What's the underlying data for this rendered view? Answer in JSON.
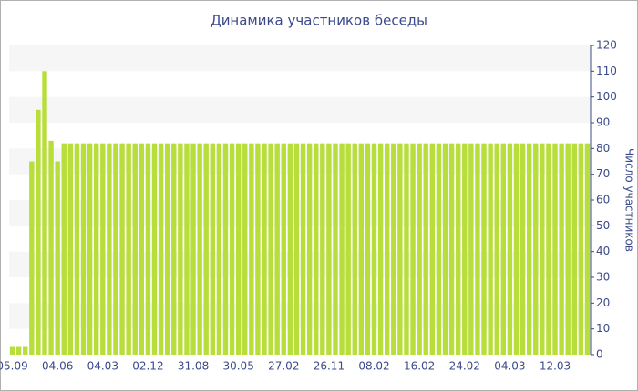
{
  "chart_data": {
    "type": "bar",
    "title": "Динамика участников беседы",
    "y_axis_label": "Число участников",
    "categories": [
      "05.09",
      null,
      null,
      null,
      null,
      null,
      null,
      "04.06",
      null,
      null,
      null,
      null,
      null,
      null,
      "04.03",
      null,
      null,
      null,
      null,
      null,
      null,
      "02.12",
      null,
      null,
      null,
      null,
      null,
      null,
      "31.08",
      null,
      null,
      null,
      null,
      null,
      null,
      "30.05",
      null,
      null,
      null,
      null,
      null,
      null,
      "27.02",
      null,
      null,
      null,
      null,
      null,
      null,
      "26.11",
      null,
      null,
      null,
      null,
      null,
      null,
      "08.02",
      null,
      null,
      null,
      null,
      null,
      null,
      "16.02",
      null,
      null,
      null,
      null,
      null,
      null,
      "24.02",
      null,
      null,
      null,
      null,
      null,
      null,
      "04.03",
      null,
      null,
      null,
      null,
      null,
      null,
      "12.03",
      null,
      null,
      null,
      null,
      null
    ],
    "values": [
      3,
      3,
      3,
      75,
      95,
      110,
      83,
      75,
      82,
      82,
      82,
      82,
      82,
      82,
      82,
      82,
      82,
      82,
      82,
      82,
      82,
      82,
      82,
      82,
      82,
      82,
      82,
      82,
      82,
      82,
      82,
      82,
      82,
      82,
      82,
      82,
      82,
      82,
      82,
      82,
      82,
      82,
      82,
      82,
      82,
      82,
      82,
      82,
      82,
      82,
      82,
      82,
      82,
      82,
      82,
      82,
      82,
      82,
      82,
      82,
      82,
      82,
      82,
      82,
      82,
      82,
      82,
      82,
      82,
      82,
      82,
      82,
      82,
      82,
      82,
      82,
      82,
      82,
      82,
      82,
      82,
      82,
      82,
      82,
      82,
      82,
      82,
      82,
      82,
      82
    ],
    "color": "#b8de3b",
    "ylim": [
      0,
      120
    ],
    "yticks": [
      0,
      10,
      20,
      30,
      40,
      50,
      60,
      70,
      80,
      90,
      100,
      110,
      120
    ],
    "grid": "bands",
    "y_axis_side": "right"
  }
}
